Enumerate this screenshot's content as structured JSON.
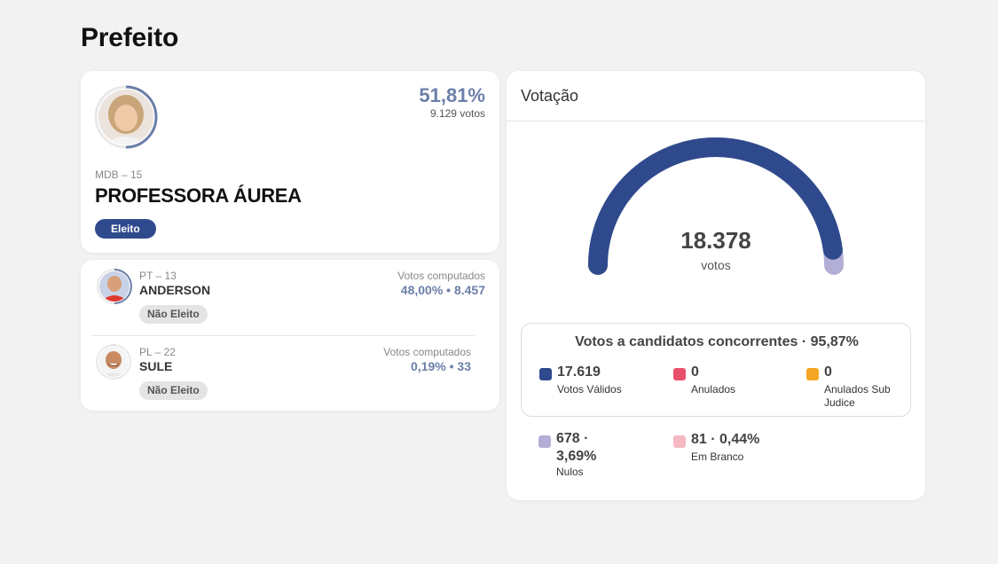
{
  "page": {
    "title": "Prefeito"
  },
  "winner": {
    "percent": "51,81%",
    "votes": "9.129 votos",
    "party": "MDB – 15",
    "name": "PROFESSORA ÁUREA",
    "status": "Eleito",
    "share": 0.5181
  },
  "others": [
    {
      "party": "PT – 13",
      "name": "ANDERSON",
      "status": "Não Eleito",
      "label": "Votos computados",
      "stats": "48,00%  •  8.457",
      "share": 0.48
    },
    {
      "party": "PL – 22",
      "name": "SULE",
      "status": "Não Eleito",
      "label": "Votos computados",
      "stats": "0,19%  •  33",
      "share": 0.0019
    }
  ],
  "voting": {
    "title": "Votação",
    "total": "18.378",
    "unit": "votos",
    "valid_title": "Votos a candidatos concorrentes · 95,87%",
    "gauge_share_valid": 0.9587,
    "stats": [
      {
        "value": "17.619",
        "label": "Votos Válidos",
        "color": "#2f4a8c"
      },
      {
        "value": "0",
        "label": "Anulados",
        "color": "#e8506a"
      },
      {
        "value": "0",
        "label": "Anulados Sub Judice",
        "color": "#f5a623"
      },
      {
        "value": "678 · 3,69%",
        "label": "Nulos",
        "color": "#b3aed6"
      },
      {
        "value": "81 · 0,44%",
        "label": "Em Branco",
        "color": "#f6b8c1"
      }
    ]
  },
  "colors": {
    "accent": "#2f4a8c",
    "percent": "#6b7fa8",
    "ring": "#6b7fa8"
  }
}
